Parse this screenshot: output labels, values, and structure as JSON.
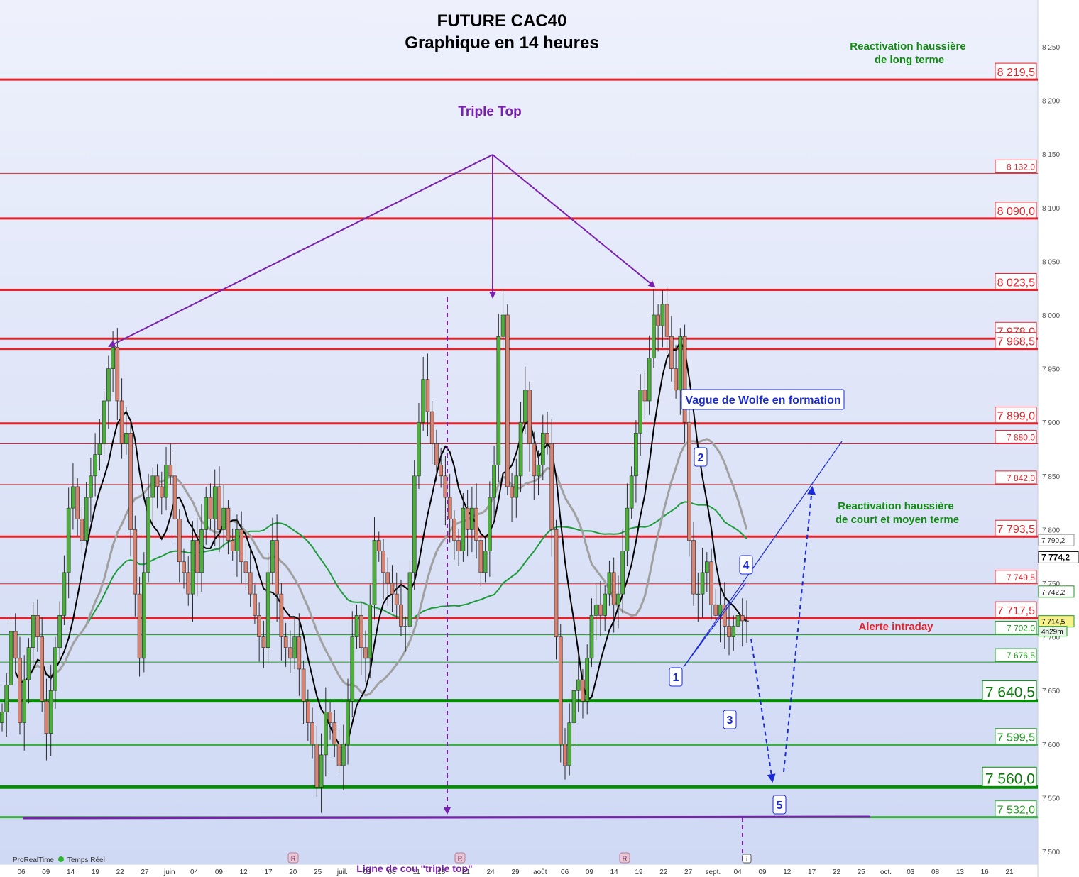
{
  "chart_data": {
    "type": "candlestick",
    "title": "FUTURE CAC40",
    "subtitle": "Graphique en 14 heures",
    "ylim": [
      7495,
      8275
    ],
    "y_ticks": [
      {
        "v": 8250,
        "label": "8 250"
      },
      {
        "v": 8200,
        "label": "8 200"
      },
      {
        "v": 8150,
        "label": "8 150"
      },
      {
        "v": 8100,
        "label": "8 100"
      },
      {
        "v": 8050,
        "label": "8 050"
      },
      {
        "v": 8000,
        "label": "8 000"
      },
      {
        "v": 7950,
        "label": "7 950"
      },
      {
        "v": 7900,
        "label": "7 900"
      },
      {
        "v": 7850,
        "label": "7 850"
      },
      {
        "v": 7800,
        "label": "7 800"
      },
      {
        "v": 7750,
        "label": "7 750"
      },
      {
        "v": 7700,
        "label": "7 700"
      },
      {
        "v": 7650,
        "label": "7 650"
      },
      {
        "v": 7600,
        "label": "7 600"
      },
      {
        "v": 7550,
        "label": "7 550"
      },
      {
        "v": 7500,
        "label": "7 500"
      }
    ],
    "x_ticks": [
      {
        "i": 0,
        "label": "06"
      },
      {
        "i": 1,
        "label": "09"
      },
      {
        "i": 2,
        "label": "14"
      },
      {
        "i": 3,
        "label": "19"
      },
      {
        "i": 4,
        "label": "22"
      },
      {
        "i": 5,
        "label": "27"
      },
      {
        "i": 6,
        "label": "juin"
      },
      {
        "i": 7,
        "label": "04"
      },
      {
        "i": 8,
        "label": "09"
      },
      {
        "i": 9,
        "label": "12"
      },
      {
        "i": 10,
        "label": "17"
      },
      {
        "i": 11,
        "label": "20"
      },
      {
        "i": 12,
        "label": "25"
      },
      {
        "i": 13,
        "label": "juil."
      },
      {
        "i": 14,
        "label": "03"
      },
      {
        "i": 15,
        "label": "08"
      },
      {
        "i": 16,
        "label": "11"
      },
      {
        "i": 17,
        "label": "16"
      },
      {
        "i": 18,
        "label": "21"
      },
      {
        "i": 19,
        "label": "24"
      },
      {
        "i": 20,
        "label": "29"
      },
      {
        "i": 21,
        "label": "août"
      },
      {
        "i": 22,
        "label": "06"
      },
      {
        "i": 23,
        "label": "09"
      },
      {
        "i": 24,
        "label": "14"
      },
      {
        "i": 25,
        "label": "19"
      },
      {
        "i": 26,
        "label": "22"
      },
      {
        "i": 27,
        "label": "27"
      },
      {
        "i": 28,
        "label": "sept."
      },
      {
        "i": 29,
        "label": "04"
      },
      {
        "i": 30,
        "label": "09"
      },
      {
        "i": 31,
        "label": "12"
      },
      {
        "i": 32,
        "label": "17"
      },
      {
        "i": 33,
        "label": "22"
      },
      {
        "i": 34,
        "label": "25"
      },
      {
        "i": 35,
        "label": "oct."
      },
      {
        "i": 36,
        "label": "03"
      },
      {
        "i": 37,
        "label": "08"
      },
      {
        "i": 38,
        "label": "13"
      },
      {
        "i": 39,
        "label": "16"
      },
      {
        "i": 40,
        "label": "21"
      }
    ],
    "candle_close": [
      7630,
      7655,
      7705,
      7680,
      7620,
      7660,
      7690,
      7720,
      7700,
      7640,
      7610,
      7650,
      7690,
      7720,
      7760,
      7820,
      7840,
      7810,
      7790,
      7830,
      7850,
      7870,
      7880,
      7920,
      7950,
      7970,
      7920,
      7880,
      7890,
      7800,
      7740,
      7680,
      7760,
      7830,
      7850,
      7840,
      7830,
      7860,
      7850,
      7810,
      7770,
      7760,
      7740,
      7790,
      7760,
      7800,
      7830,
      7810,
      7840,
      7800,
      7820,
      7790,
      7780,
      7800,
      7770,
      7760,
      7740,
      7720,
      7700,
      7690,
      7760,
      7790,
      7740,
      7700,
      7690,
      7680,
      7700,
      7670,
      7640,
      7620,
      7600,
      7560,
      7590,
      7630,
      7620,
      7600,
      7580,
      7600,
      7640,
      7700,
      7720,
      7690,
      7680,
      7730,
      7790,
      7780,
      7760,
      7750,
      7740,
      7730,
      7710,
      7710,
      7760,
      7850,
      7900,
      7940,
      7910,
      7880,
      7860,
      7850,
      7830,
      7810,
      7790,
      7780,
      7820,
      7800,
      7820,
      7790,
      7760,
      7780,
      7830,
      7860,
      7980,
      8000,
      7840,
      7830,
      7850,
      7900,
      7930,
      7880,
      7850,
      7860,
      7890,
      7880,
      7800,
      7700,
      7600,
      7580,
      7620,
      7650,
      7660,
      7640,
      7680,
      7720,
      7730,
      7720,
      7740,
      7760,
      7730,
      7740,
      7780,
      7820,
      7850,
      7890,
      7930,
      7920,
      7960,
      8000,
      7990,
      8010,
      7980,
      7950,
      7930,
      7980,
      7900,
      7790,
      7740,
      7740,
      7760,
      7770,
      7730,
      7720,
      7730,
      7710,
      7700,
      7710,
      7720,
      7715,
      7714.5
    ],
    "horizontal_levels": [
      {
        "v": 8219.5,
        "label": "8 219,5",
        "kind": "res-thick"
      },
      {
        "v": 8132.0,
        "label": "8 132,0",
        "kind": "res-thin"
      },
      {
        "v": 8090.0,
        "label": "8 090,0",
        "kind": "res-thick"
      },
      {
        "v": 8023.5,
        "label": "8 023,5",
        "kind": "res-thick"
      },
      {
        "v": 7978.0,
        "label": "7 978,0",
        "kind": "res-thick"
      },
      {
        "v": 7968.5,
        "label": "7 968,5",
        "kind": "res-thick"
      },
      {
        "v": 7899.0,
        "label": "7 899,0",
        "kind": "res-thick"
      },
      {
        "v": 7880.0,
        "label": "7 880,0",
        "kind": "res-thin"
      },
      {
        "v": 7842.0,
        "label": "7 842,0",
        "kind": "res-thin"
      },
      {
        "v": 7793.5,
        "label": "7 793,5",
        "kind": "res-thick"
      },
      {
        "v": 7749.5,
        "label": "7 749,5",
        "kind": "res-thin"
      },
      {
        "v": 7717.5,
        "label": "7 717,5",
        "kind": "res-thick"
      },
      {
        "v": 7702.0,
        "label": "7 702,0",
        "kind": "sup-thin"
      },
      {
        "v": 7676.5,
        "label": "7 676,5",
        "kind": "sup-thin"
      },
      {
        "v": 7640.5,
        "label": "7 640,5",
        "kind": "sup-major"
      },
      {
        "v": 7599.5,
        "label": "7 599,5",
        "kind": "sup-thick"
      },
      {
        "v": 7560.0,
        "label": "7 560,0",
        "kind": "sup-major"
      },
      {
        "v": 7532.0,
        "label": "7 532,0",
        "kind": "sup-thick"
      }
    ],
    "price_tags": [
      {
        "v": 7790.2,
        "label": "7 790,2",
        "kind": "gray"
      },
      {
        "v": 7774.2,
        "label": "7 774,2",
        "kind": "black"
      },
      {
        "v": 7742.2,
        "label": "7 742,2",
        "kind": "green"
      },
      {
        "v": 7714.5,
        "label": "7 714,5",
        "kind": "last"
      }
    ],
    "countdown": "4h29m",
    "annotations": {
      "triple_top": "Triple Top",
      "reactivation_long": [
        "Reactivation haussière",
        "de long terme"
      ],
      "reactivation_short": [
        "Reactivation haussière",
        "de court et moyen terme"
      ],
      "alerte": "Alerte intraday",
      "wolfe": "Vague de Wolfe en formation",
      "neckline": "Ligne de cou \"triple top\"",
      "wave_labels": [
        "1",
        "2",
        "3",
        "4",
        "5"
      ]
    },
    "colors": {
      "resistance": "#e0242c",
      "support": "#1e9a1e",
      "candle_up": "#4caf3a",
      "candle_down": "#d9826f",
      "annotation": "#7a1fb0",
      "wolfe": "#1a2ad6",
      "ma_fast": "#000000",
      "ma_mid": "#a0a0a0",
      "ma_slow": "#1e9a3a"
    }
  },
  "footer": {
    "brand": "ProRealTime",
    "realtime": "Temps Réel",
    "markers": [
      "R",
      "R",
      "R"
    ],
    "info_marker": "i"
  }
}
